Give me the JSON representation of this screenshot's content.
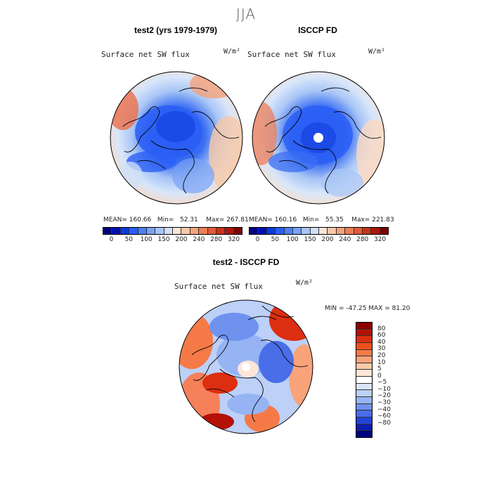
{
  "season": "JJA",
  "panels": [
    {
      "title": "test2 (yrs 1979-1979)",
      "variable": "Surface net SW flux",
      "units": "W/m²",
      "stats": {
        "mean_label": "MEAN=",
        "mean": "160.66",
        "min_label": "Min=",
        "min": "52.31",
        "max_label": "Max=",
        "max": "267.81"
      },
      "hole": false
    },
    {
      "title": "ISCCP FD",
      "variable": "Surface net SW flux",
      "units": "W/m²",
      "stats": {
        "mean_label": "MEAN=",
        "mean": "160.16",
        "min_label": "Min=",
        "min": "55.35",
        "max_label": "Max=",
        "max": "221.83"
      },
      "hole": true
    }
  ],
  "colorbar_abs": {
    "labels": [
      "0",
      "50",
      "100",
      "150",
      "200",
      "240",
      "280",
      "320"
    ],
    "colors": [
      "#00007f",
      "#0010b0",
      "#0a3ae0",
      "#2a5ef5",
      "#4f80f5",
      "#7aa2f3",
      "#a7c4f5",
      "#cfe0f8",
      "#fbe6d6",
      "#f8c8a8",
      "#f3a47c",
      "#ec7e58",
      "#e25a3a",
      "#cc3216",
      "#a8180c",
      "#7a0404"
    ]
  },
  "diff": {
    "title": "test2 - ISCCP FD",
    "variable": "Surface net SW flux",
    "units": "W/m²",
    "stats_label": "MIN = -47.25 MAX =  81.20",
    "colorbar_labels": [
      "80",
      "60",
      "40",
      "30",
      "20",
      "10",
      "5",
      "0",
      "−5",
      "−10",
      "−20",
      "−30",
      "−40",
      "−60",
      "−80"
    ],
    "colorbar_colors": [
      "#8a0000",
      "#b41206",
      "#dc2e10",
      "#f0501e",
      "#f57a48",
      "#f8a37a",
      "#fbcaa8",
      "#fde6d8",
      "#ffffff",
      "#dbe6fb",
      "#bcd0f8",
      "#96b4f4",
      "#6f92ef",
      "#4a6de8",
      "#2244d6",
      "#0a1eb0",
      "#00007f"
    ]
  }
}
